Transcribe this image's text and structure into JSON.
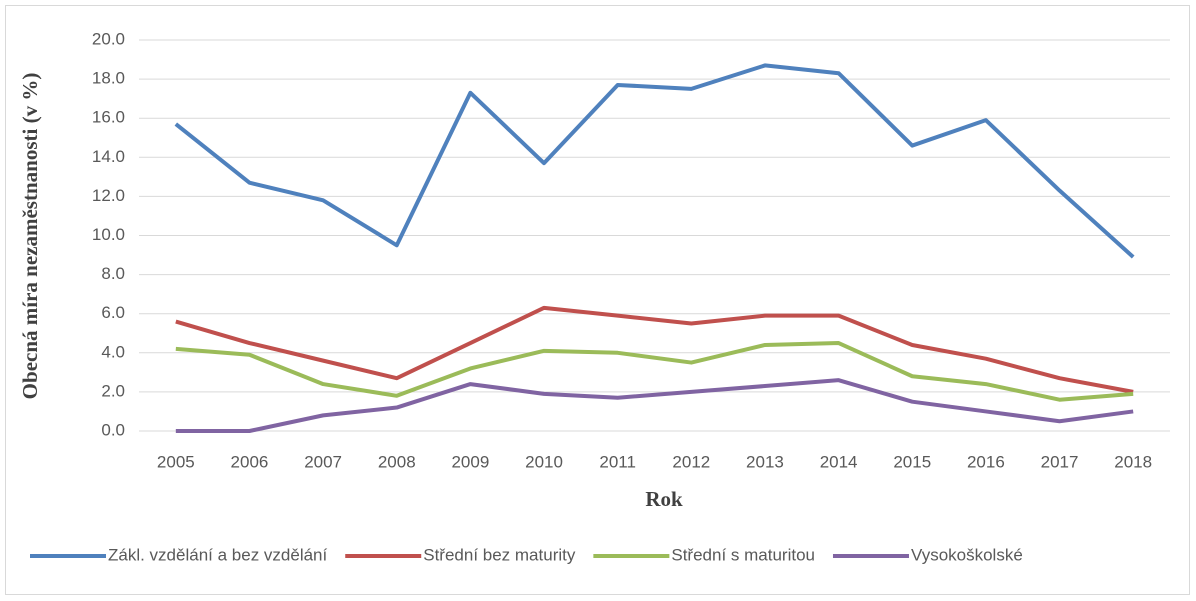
{
  "chart_data": {
    "type": "line",
    "y_label": "Obecná míra nezaměstnanosti (v %)",
    "x_label": "Rok",
    "categories": [
      "2005",
      "2006",
      "2007",
      "2008",
      "2009",
      "2010",
      "2011",
      "2012",
      "2013",
      "2014",
      "2015",
      "2016",
      "2017",
      "2018"
    ],
    "series": [
      {
        "name": "Zákl. vzdělání a bez vzdělání",
        "color": "#4f81bd",
        "values": [
          15.7,
          12.7,
          11.8,
          9.5,
          17.3,
          13.7,
          17.7,
          17.5,
          18.7,
          18.3,
          14.6,
          15.9,
          12.3,
          8.9
        ]
      },
      {
        "name": "Střední bez maturity",
        "color": "#c0504d",
        "values": [
          5.6,
          4.5,
          3.6,
          2.7,
          4.5,
          6.3,
          5.9,
          5.5,
          5.9,
          5.9,
          4.4,
          3.7,
          2.7,
          2.0
        ]
      },
      {
        "name": "Střední s maturitou",
        "color": "#9bbb59",
        "values": [
          4.2,
          3.9,
          2.4,
          1.8,
          3.2,
          4.1,
          4.0,
          3.5,
          4.4,
          4.5,
          2.8,
          2.4,
          1.6,
          1.9
        ]
      },
      {
        "name": "Vysokoškolské",
        "color": "#8064a2",
        "values": [
          0,
          0,
          0.8,
          1.2,
          2.4,
          1.9,
          1.7,
          2.0,
          2.3,
          2.6,
          1.5,
          1.0,
          0.5,
          1.0
        ]
      }
    ],
    "ylim": [
      0,
      20
    ],
    "yticks": [
      {
        "value": 0,
        "label": "0.0"
      },
      {
        "value": 2,
        "label": "2.0"
      },
      {
        "value": 4,
        "label": "4.0"
      },
      {
        "value": 6,
        "label": "6.0"
      },
      {
        "value": 8,
        "label": "8.0"
      },
      {
        "value": 10,
        "label": "10.0"
      },
      {
        "value": 12,
        "label": "12.0"
      },
      {
        "value": 14,
        "label": "14.0"
      },
      {
        "value": 16,
        "label": "16.0"
      },
      {
        "value": 18,
        "label": "18.0"
      },
      {
        "value": 20,
        "label": "20.0"
      }
    ],
    "grid": true,
    "legend": "bottom"
  }
}
